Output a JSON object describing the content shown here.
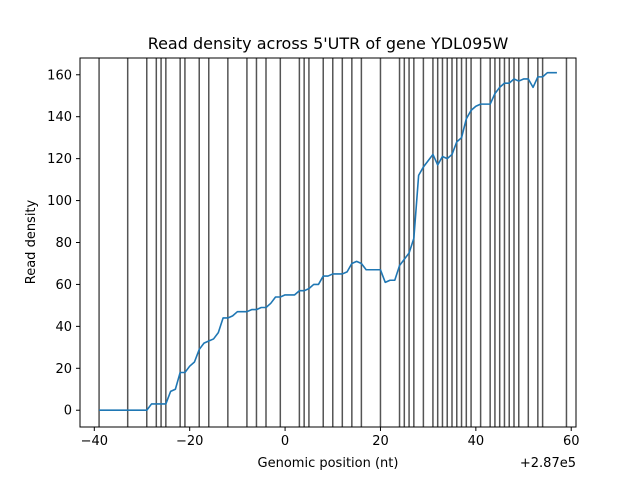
{
  "chart_data": {
    "type": "line",
    "title": "Read density across 5'UTR of gene YDL095W",
    "xlabel": "Genomic position (nt)",
    "ylabel": "Read density",
    "x_offset_label": "+2.87e5",
    "xlim": [
      -43,
      61
    ],
    "ylim": [
      -8,
      168
    ],
    "x_ticks": [
      -40,
      -20,
      0,
      20,
      40,
      60
    ],
    "x_tick_labels": [
      "−40",
      "−20",
      "0",
      "20",
      "40",
      "60"
    ],
    "y_ticks": [
      0,
      20,
      40,
      60,
      80,
      100,
      120,
      140,
      160
    ],
    "y_tick_labels": [
      "0",
      "20",
      "40",
      "60",
      "80",
      "100",
      "120",
      "140",
      "160"
    ],
    "grid": false,
    "line_color": "#1f77b4",
    "vline_color": "#555555",
    "vlines": [
      -39,
      -33,
      -29,
      -27,
      -26,
      -25,
      -22,
      -21,
      -18,
      -16,
      -12,
      -8,
      -6,
      -4,
      -1,
      3,
      4,
      5,
      8,
      10,
      12,
      14,
      16,
      20,
      24,
      25,
      26,
      27,
      29,
      31,
      32,
      33,
      34,
      35,
      36,
      37,
      38,
      39,
      41,
      43,
      44,
      45,
      46,
      47,
      48,
      49,
      51,
      53,
      54,
      59
    ],
    "series": [
      {
        "x": [
          -39,
          -38,
          -37,
          -36,
          -35,
          -34,
          -33,
          -32,
          -31,
          -30,
          -29,
          -28,
          -27,
          -26,
          -25,
          -24,
          -23,
          -22,
          -21,
          -20,
          -19,
          -18,
          -17,
          -16,
          -15,
          -14,
          -13,
          -12,
          -11,
          -10,
          -9,
          -8,
          -7,
          -6,
          -5,
          -4,
          -3,
          -2,
          -1,
          0,
          1,
          2,
          3,
          4,
          5,
          6,
          7,
          8,
          9,
          10,
          11,
          12,
          13,
          14,
          15,
          16,
          17,
          18,
          19,
          20,
          21,
          22,
          23,
          24,
          25,
          26,
          27,
          28,
          29,
          30,
          31,
          32,
          33,
          34,
          35,
          36,
          37,
          38,
          39,
          40,
          41,
          42,
          43,
          44,
          45,
          46,
          47,
          48,
          49,
          50,
          51,
          52,
          53,
          54,
          55,
          56,
          57
        ],
        "values": [
          0,
          0,
          0,
          0,
          0,
          0,
          0,
          0,
          0,
          0,
          0,
          3,
          3,
          3,
          3,
          9,
          10,
          18,
          18,
          21,
          23,
          29,
          32,
          33,
          34,
          37,
          44,
          44,
          45,
          47,
          47,
          47,
          48,
          48,
          49,
          49,
          51,
          54,
          54,
          55,
          55,
          55,
          57,
          57,
          58,
          60,
          60,
          64,
          64,
          65,
          65,
          65,
          66,
          70,
          71,
          70,
          67,
          67,
          67,
          67,
          61,
          62,
          62,
          69,
          72,
          75,
          82,
          112,
          116,
          119,
          122,
          117,
          121,
          120,
          122,
          128,
          130,
          139,
          143,
          145,
          146,
          146,
          146,
          151,
          154,
          156,
          156,
          158,
          157,
          158,
          158,
          154,
          159,
          159,
          161,
          161,
          161
        ]
      }
    ]
  }
}
